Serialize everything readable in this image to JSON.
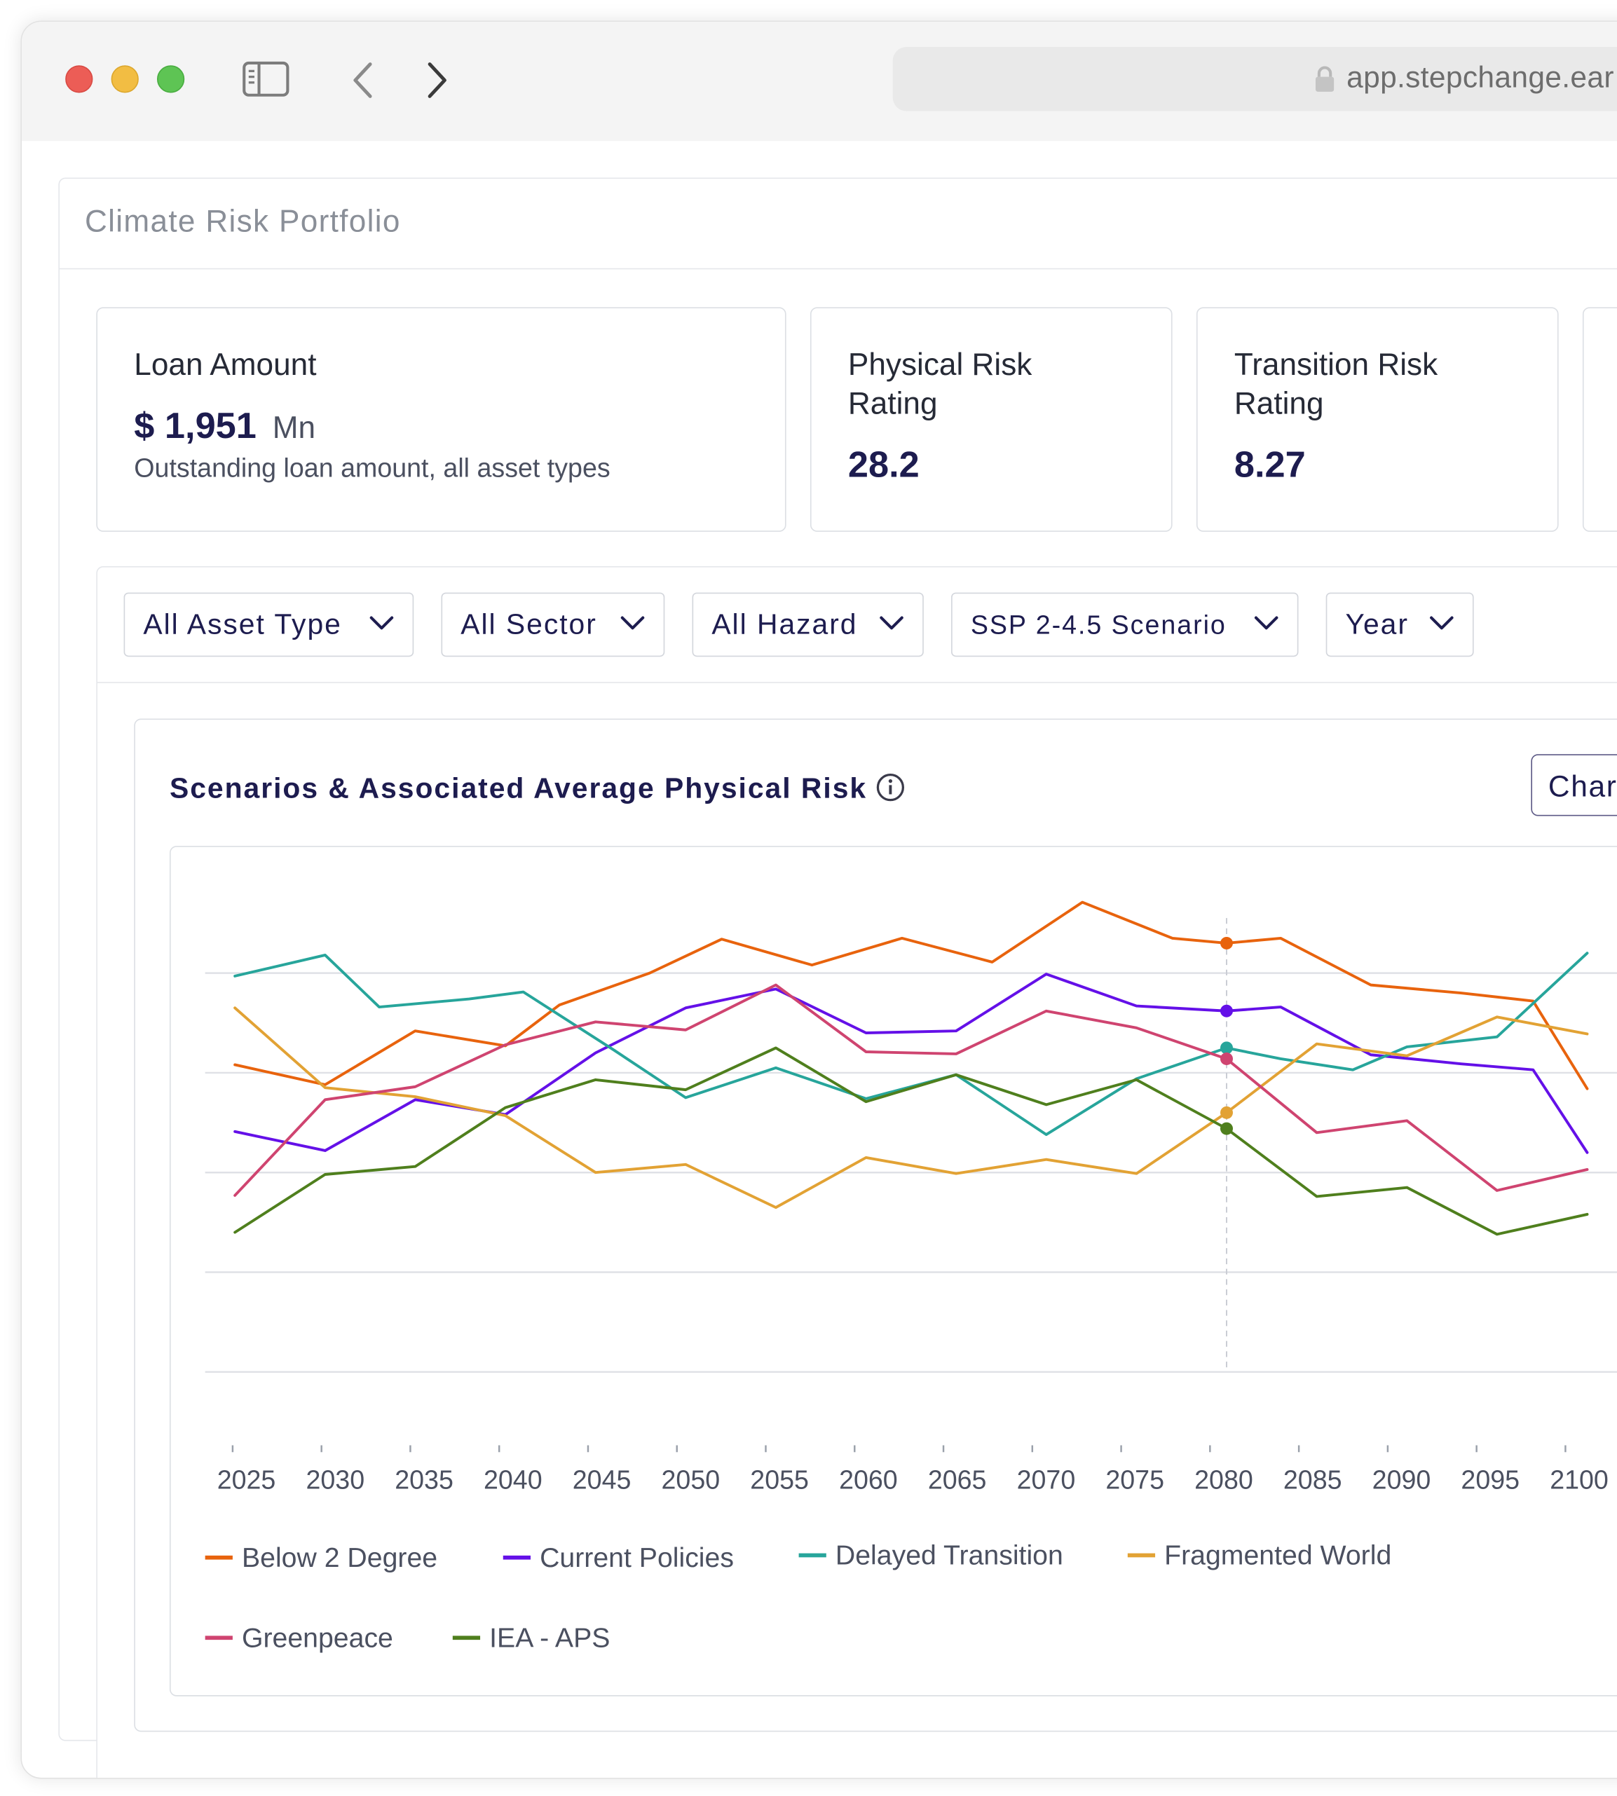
{
  "browser": {
    "url": "app.stepchange.ear"
  },
  "panel": {
    "title": "Climate Risk Portfolio"
  },
  "cards": {
    "loan": {
      "label": "Loan Amount",
      "value": "$ 1,951",
      "unit": "Mn",
      "description": "Outstanding loan amount, all asset types"
    },
    "physical": {
      "label_line1": "Physical Risk",
      "label_line2": "Rating",
      "value": "28.2"
    },
    "transition": {
      "label_line1": "Transition Risk",
      "label_line2": "Rating",
      "value": "8.27"
    }
  },
  "filters": {
    "asset_type": "All Asset Type",
    "sector": "All Sector",
    "hazard": "All Hazard",
    "scenario": "SSP 2-4.5 Scenario",
    "year": "Year"
  },
  "chart_section": {
    "title": "Scenarios & Associated Average Physical Risk",
    "button_label": "Char"
  },
  "colors": {
    "below_2_degree": "#e8630d",
    "current_policies": "#6410e8",
    "delayed_transition": "#27a59b",
    "fragmented_world": "#e2a234",
    "greenpeace": "#cf4470",
    "iea_aps": "#4f7f1d",
    "title_navy": "#1d1c4f"
  },
  "chart_data": {
    "type": "line",
    "title": "Scenarios & Associated Average Physical Risk",
    "xlabel": "",
    "ylabel": "",
    "x": [
      "2025",
      "2030",
      "2035",
      "2040",
      "2045",
      "2050",
      "2055",
      "2060",
      "2065",
      "2070",
      "2075",
      "2080",
      "2085",
      "2090",
      "2095",
      "2100"
    ],
    "xlim": [
      2025,
      2100
    ],
    "ylim": [
      0,
      5
    ],
    "grid": true,
    "legend": "bottom",
    "highlighted_x": "2080",
    "series": [
      {
        "name": "Below 2 Degree",
        "color_key": "below_2_degree",
        "points": [
          [
            2025,
            3.08
          ],
          [
            2030,
            2.88
          ],
          [
            2035,
            3.42
          ],
          [
            2040,
            3.27
          ],
          [
            2043,
            3.68
          ],
          [
            2048,
            4.0
          ],
          [
            2052,
            4.34
          ],
          [
            2057,
            4.08
          ],
          [
            2062,
            4.35
          ],
          [
            2067,
            4.11
          ],
          [
            2072,
            4.71
          ],
          [
            2077,
            4.35
          ],
          [
            2080,
            4.3
          ],
          [
            2083,
            4.35
          ],
          [
            2088,
            3.88
          ],
          [
            2093,
            3.8
          ],
          [
            2097,
            3.72
          ],
          [
            2100,
            2.84
          ]
        ]
      },
      {
        "name": "Current Policies",
        "color_key": "current_policies",
        "points": [
          [
            2025,
            2.41
          ],
          [
            2030,
            2.22
          ],
          [
            2035,
            2.73
          ],
          [
            2040,
            2.58
          ],
          [
            2045,
            3.2
          ],
          [
            2050,
            3.65
          ],
          [
            2055,
            3.84
          ],
          [
            2060,
            3.4
          ],
          [
            2065,
            3.42
          ],
          [
            2070,
            3.99
          ],
          [
            2075,
            3.67
          ],
          [
            2080,
            3.62
          ],
          [
            2083,
            3.66
          ],
          [
            2088,
            3.18
          ],
          [
            2093,
            3.09
          ],
          [
            2097,
            3.03
          ],
          [
            2100,
            2.2
          ]
        ]
      },
      {
        "name": "Delayed Transition",
        "color_key": "delayed_transition",
        "points": [
          [
            2025,
            3.97
          ],
          [
            2030,
            4.18
          ],
          [
            2033,
            3.66
          ],
          [
            2038,
            3.74
          ],
          [
            2041,
            3.81
          ],
          [
            2046,
            3.23
          ],
          [
            2050,
            2.75
          ],
          [
            2055,
            3.05
          ],
          [
            2060,
            2.74
          ],
          [
            2065,
            2.98
          ],
          [
            2070,
            2.38
          ],
          [
            2075,
            2.94
          ],
          [
            2080,
            3.25
          ],
          [
            2083,
            3.14
          ],
          [
            2087,
            3.03
          ],
          [
            2090,
            3.26
          ],
          [
            2095,
            3.36
          ],
          [
            2100,
            4.2
          ]
        ]
      },
      {
        "name": "Fragmented World",
        "color_key": "fragmented_world",
        "points": [
          [
            2025,
            3.65
          ],
          [
            2030,
            2.85
          ],
          [
            2035,
            2.76
          ],
          [
            2040,
            2.57
          ],
          [
            2045,
            2.0
          ],
          [
            2050,
            2.08
          ],
          [
            2055,
            1.65
          ],
          [
            2060,
            2.15
          ],
          [
            2065,
            1.99
          ],
          [
            2070,
            2.13
          ],
          [
            2075,
            1.99
          ],
          [
            2080,
            2.6
          ],
          [
            2085,
            3.29
          ],
          [
            2090,
            3.17
          ],
          [
            2095,
            3.56
          ],
          [
            2100,
            3.39
          ]
        ]
      },
      {
        "name": "Greenpeace",
        "color_key": "greenpeace",
        "points": [
          [
            2025,
            1.77
          ],
          [
            2030,
            2.73
          ],
          [
            2035,
            2.86
          ],
          [
            2040,
            3.28
          ],
          [
            2045,
            3.51
          ],
          [
            2050,
            3.43
          ],
          [
            2055,
            3.88
          ],
          [
            2060,
            3.21
          ],
          [
            2065,
            3.19
          ],
          [
            2070,
            3.62
          ],
          [
            2075,
            3.45
          ],
          [
            2080,
            3.14
          ],
          [
            2085,
            2.4
          ],
          [
            2090,
            2.52
          ],
          [
            2095,
            1.82
          ],
          [
            2100,
            2.03
          ]
        ]
      },
      {
        "name": "IEA - APS",
        "color_key": "iea_aps",
        "points": [
          [
            2025,
            1.4
          ],
          [
            2030,
            1.98
          ],
          [
            2035,
            2.06
          ],
          [
            2040,
            2.65
          ],
          [
            2045,
            2.93
          ],
          [
            2050,
            2.83
          ],
          [
            2055,
            3.25
          ],
          [
            2060,
            2.71
          ],
          [
            2065,
            2.98
          ],
          [
            2070,
            2.68
          ],
          [
            2075,
            2.93
          ],
          [
            2080,
            2.44
          ],
          [
            2085,
            1.76
          ],
          [
            2090,
            1.85
          ],
          [
            2095,
            1.38
          ],
          [
            2100,
            1.58
          ]
        ]
      }
    ]
  }
}
